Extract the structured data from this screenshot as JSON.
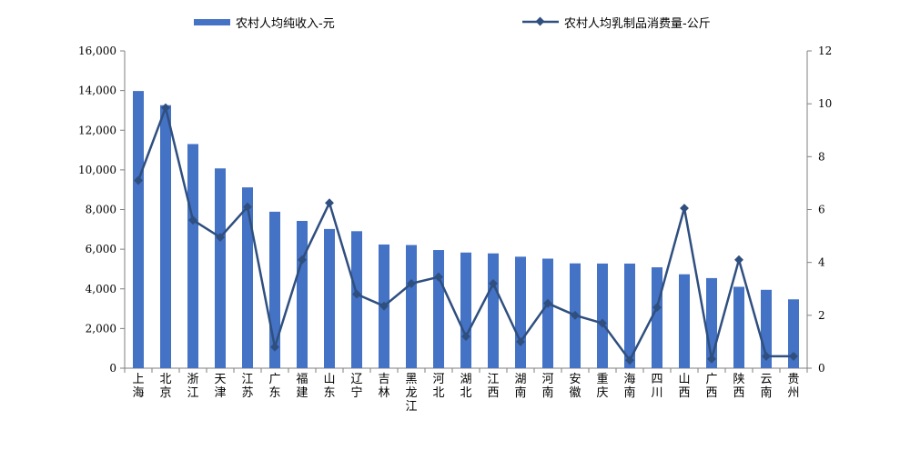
{
  "chart_data": {
    "type": "bar",
    "categories": [
      "上海",
      "北京",
      "浙江",
      "天津",
      "江苏",
      "广东",
      "福建",
      "山东",
      "辽宁",
      "吉林",
      "黑龙江",
      "河北",
      "湖北",
      "江西",
      "湖南",
      "河南",
      "安徽",
      "重庆",
      "海南",
      "四川",
      "山西",
      "广西",
      "陕西",
      "云南",
      "贵州"
    ],
    "series": [
      {
        "name": "农村人均纯收入-元",
        "type": "bar",
        "axis": "left",
        "color": "#4472C4",
        "values": [
          13978,
          13262,
          11303,
          10075,
          9118,
          7890,
          7427,
          7020,
          6908,
          6237,
          6211,
          5958,
          5832,
          5789,
          5622,
          5524,
          5285,
          5277,
          5275,
          5087,
          4736,
          4543,
          4105,
          3952,
          3472
        ]
      },
      {
        "name": "农村人均乳制品消费量-公斤",
        "type": "line",
        "axis": "right",
        "color": "#2F4F7F",
        "marker": "diamond",
        "values": [
          7.1,
          9.85,
          5.6,
          4.95,
          6.1,
          0.8,
          4.1,
          6.25,
          2.8,
          2.35,
          3.2,
          3.45,
          1.2,
          3.2,
          1.0,
          2.45,
          2.0,
          1.7,
          0.3,
          2.3,
          6.05,
          0.35,
          4.1,
          0.45,
          0.45
        ]
      }
    ],
    "y_left": {
      "ylim": [
        0,
        16000
      ],
      "ticks": [
        "0",
        "2,000",
        "4,000",
        "6,000",
        "8,000",
        "10,000",
        "12,000",
        "14,000",
        "16,000"
      ]
    },
    "y_right": {
      "ylim": [
        0,
        12
      ],
      "ticks": [
        "0",
        "2",
        "4",
        "6",
        "8",
        "10",
        "12"
      ]
    },
    "legend_position": "top",
    "grid": false
  }
}
